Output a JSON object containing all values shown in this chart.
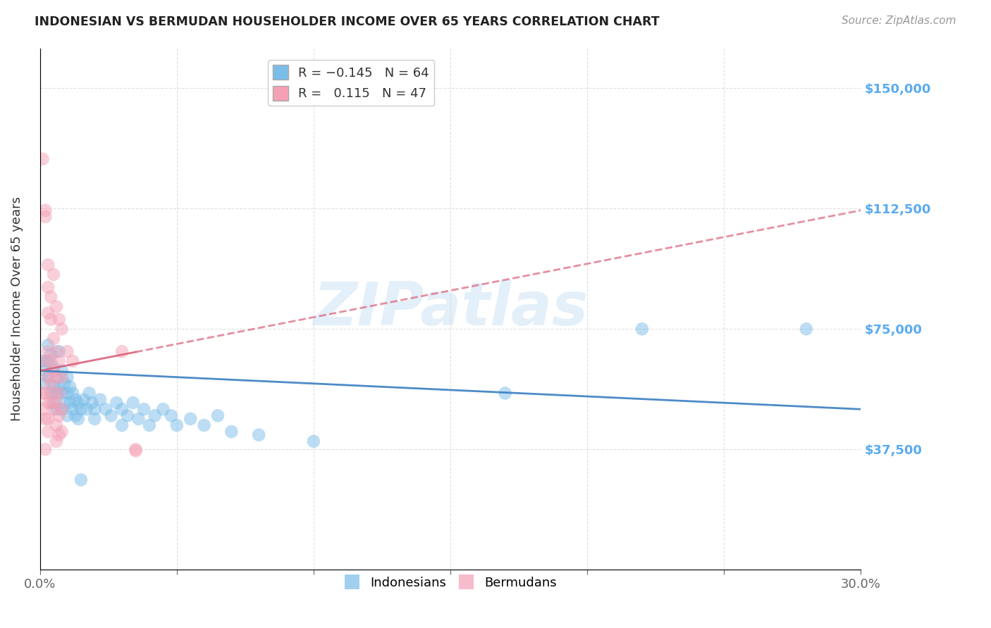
{
  "title": "INDONESIAN VS BERMUDAN HOUSEHOLDER INCOME OVER 65 YEARS CORRELATION CHART",
  "source": "Source: ZipAtlas.com",
  "ylabel": "Householder Income Over 65 years",
  "xlim": [
    0.0,
    0.3
  ],
  "ylim": [
    0,
    162500
  ],
  "yticks": [
    0,
    37500,
    75000,
    112500,
    150000
  ],
  "ytick_labels": [
    "",
    "$37,500",
    "$75,000",
    "$112,500",
    "$150,000"
  ],
  "xticks": [
    0.0,
    0.05,
    0.1,
    0.15,
    0.2,
    0.25,
    0.3
  ],
  "blue_color": "#7abde8",
  "pink_color": "#f4a0b5",
  "blue_line_color": "#3a7fc1",
  "pink_line_color": "#d9607a",
  "watermark": "ZIPatlas",
  "indonesian_points": [
    [
      0.001,
      65000
    ],
    [
      0.002,
      62000
    ],
    [
      0.002,
      58000
    ],
    [
      0.003,
      70000
    ],
    [
      0.003,
      65000
    ],
    [
      0.003,
      60000
    ],
    [
      0.004,
      67000
    ],
    [
      0.004,
      55000
    ],
    [
      0.005,
      63000
    ],
    [
      0.005,
      57000
    ],
    [
      0.005,
      52000
    ],
    [
      0.006,
      60000
    ],
    [
      0.006,
      55000
    ],
    [
      0.006,
      50000
    ],
    [
      0.007,
      68000
    ],
    [
      0.007,
      57000
    ],
    [
      0.008,
      62000
    ],
    [
      0.008,
      55000
    ],
    [
      0.008,
      50000
    ],
    [
      0.009,
      58000
    ],
    [
      0.009,
      52000
    ],
    [
      0.01,
      60000
    ],
    [
      0.01,
      55000
    ],
    [
      0.01,
      48000
    ],
    [
      0.011,
      57000
    ],
    [
      0.011,
      52000
    ],
    [
      0.012,
      55000
    ],
    [
      0.012,
      50000
    ],
    [
      0.013,
      53000
    ],
    [
      0.013,
      48000
    ],
    [
      0.014,
      52000
    ],
    [
      0.014,
      47000
    ],
    [
      0.015,
      50000
    ],
    [
      0.016,
      53000
    ],
    [
      0.017,
      50000
    ],
    [
      0.018,
      55000
    ],
    [
      0.019,
      52000
    ],
    [
      0.02,
      50000
    ],
    [
      0.02,
      47000
    ],
    [
      0.022,
      53000
    ],
    [
      0.024,
      50000
    ],
    [
      0.026,
      48000
    ],
    [
      0.028,
      52000
    ],
    [
      0.03,
      50000
    ],
    [
      0.03,
      45000
    ],
    [
      0.032,
      48000
    ],
    [
      0.034,
      52000
    ],
    [
      0.036,
      47000
    ],
    [
      0.038,
      50000
    ],
    [
      0.04,
      45000
    ],
    [
      0.042,
      48000
    ],
    [
      0.045,
      50000
    ],
    [
      0.048,
      48000
    ],
    [
      0.05,
      45000
    ],
    [
      0.055,
      47000
    ],
    [
      0.06,
      45000
    ],
    [
      0.065,
      48000
    ],
    [
      0.07,
      43000
    ],
    [
      0.08,
      42000
    ],
    [
      0.1,
      40000
    ],
    [
      0.015,
      28000
    ],
    [
      0.17,
      55000
    ],
    [
      0.22,
      75000
    ],
    [
      0.28,
      75000
    ]
  ],
  "bermudan_points": [
    [
      0.001,
      128000
    ],
    [
      0.001,
      55000
    ],
    [
      0.001,
      50000
    ],
    [
      0.002,
      112000
    ],
    [
      0.002,
      110000
    ],
    [
      0.002,
      65000
    ],
    [
      0.002,
      55000
    ],
    [
      0.002,
      47000
    ],
    [
      0.002,
      37500
    ],
    [
      0.003,
      95000
    ],
    [
      0.003,
      88000
    ],
    [
      0.003,
      80000
    ],
    [
      0.003,
      68000
    ],
    [
      0.003,
      60000
    ],
    [
      0.003,
      52000
    ],
    [
      0.003,
      47000
    ],
    [
      0.003,
      43000
    ],
    [
      0.004,
      85000
    ],
    [
      0.004,
      78000
    ],
    [
      0.004,
      65000
    ],
    [
      0.004,
      58000
    ],
    [
      0.004,
      52000
    ],
    [
      0.005,
      92000
    ],
    [
      0.005,
      72000
    ],
    [
      0.005,
      62000
    ],
    [
      0.005,
      55000
    ],
    [
      0.005,
      50000
    ],
    [
      0.006,
      82000
    ],
    [
      0.006,
      68000
    ],
    [
      0.006,
      60000
    ],
    [
      0.006,
      52000
    ],
    [
      0.006,
      45000
    ],
    [
      0.006,
      40000
    ],
    [
      0.007,
      78000
    ],
    [
      0.007,
      65000
    ],
    [
      0.007,
      55000
    ],
    [
      0.007,
      48000
    ],
    [
      0.007,
      42000
    ],
    [
      0.008,
      75000
    ],
    [
      0.008,
      60000
    ],
    [
      0.008,
      50000
    ],
    [
      0.008,
      43000
    ],
    [
      0.01,
      68000
    ],
    [
      0.012,
      65000
    ],
    [
      0.03,
      68000
    ],
    [
      0.035,
      37500
    ],
    [
      0.035,
      37000
    ]
  ]
}
